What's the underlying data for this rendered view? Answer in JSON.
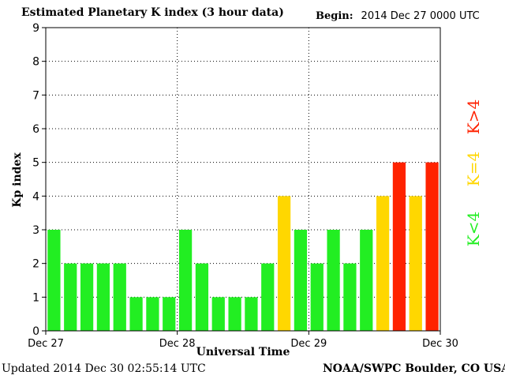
{
  "header": {
    "title": "Estimated Planetary K index (3 hour data)",
    "begin_label": "Begin:",
    "begin_value": "2014 Dec 27 0000 UTC"
  },
  "footer": {
    "updated": "Updated 2014 Dec 30 02:55:14 UTC",
    "source": "NOAA/SWPC Boulder, CO USA"
  },
  "legend": {
    "low": "K<4",
    "eq": "K=4",
    "high": "K>4"
  },
  "colors": {
    "low": "#22ee22",
    "eq": "#ffd700",
    "high": "#ff2200",
    "grid": "#000000",
    "background": "#ffffff"
  },
  "chart_data": {
    "type": "bar",
    "xlabel": "Universal Time",
    "ylabel": "Kp index",
    "ylim": [
      0,
      9
    ],
    "yticks": [
      "0",
      "1",
      "2",
      "3",
      "4",
      "5",
      "6",
      "7",
      "8",
      "9"
    ],
    "xticks": [
      "Dec 27",
      "Dec 28",
      "Dec 29",
      "Dec 30"
    ],
    "grid": "dotted",
    "values": [
      3,
      2,
      2,
      2,
      2,
      1,
      1,
      1,
      3,
      2,
      1,
      1,
      1,
      2,
      4,
      3,
      2,
      3,
      2,
      3,
      4,
      5,
      4,
      5
    ]
  }
}
